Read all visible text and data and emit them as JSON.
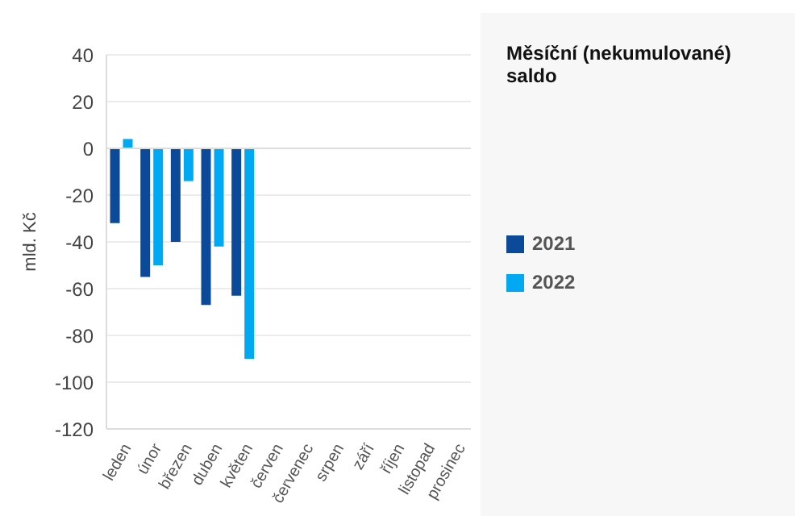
{
  "chart_data": {
    "type": "bar",
    "title": "Měsíční (nekumulované) saldo",
    "ylabel": "mld. Kč",
    "categories": [
      "leden",
      "únor",
      "březen",
      "duben",
      "květen",
      "červen",
      "červenec",
      "srpen",
      "září",
      "říjen",
      "listopad",
      "prosinec"
    ],
    "series": [
      {
        "name": "2021",
        "color": "#0b4a98",
        "values": [
          -32,
          -55,
          -40,
          -67,
          -63,
          null,
          null,
          null,
          null,
          null,
          null,
          null
        ]
      },
      {
        "name": "2022",
        "color": "#00a9f2",
        "values": [
          4,
          -50,
          -14,
          -42,
          -90,
          null,
          null,
          null,
          null,
          null,
          null,
          null
        ]
      }
    ],
    "ylim": [
      -120,
      40
    ],
    "yticks": [
      -120,
      -100,
      -80,
      -60,
      -40,
      -20,
      0,
      20,
      40
    ],
    "grid": "y",
    "legend": "right"
  }
}
